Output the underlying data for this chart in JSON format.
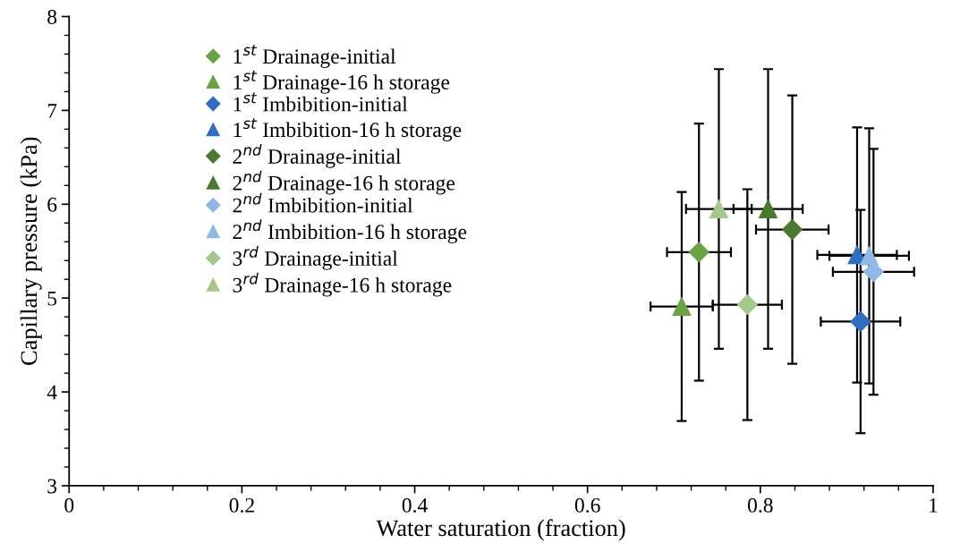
{
  "chart_data": {
    "type": "scatter",
    "xlabel": "Water saturation (fraction)",
    "ylabel": "Capillary pressure (kPa)",
    "xlim": [
      0,
      1
    ],
    "xticks": [
      0,
      0.2,
      0.4,
      0.6,
      0.8,
      1
    ],
    "ylim": [
      3,
      8
    ],
    "yticks": [
      3,
      4,
      5,
      6,
      7,
      8
    ],
    "grid": false,
    "legend": "top left",
    "series": [
      {
        "name": "1$^{st}$ Drainage-initial",
        "color": "#6aa342",
        "marker": "diamond",
        "x": [
          0.729
        ],
        "values": [
          5.49
        ],
        "xerrors": [
          0.037
        ],
        "errors": [
          1.37
        ]
      },
      {
        "name": "1$^{st}$ Drainage-16 h storage",
        "color": "#6aa342",
        "marker": "triangle",
        "x": [
          0.709
        ],
        "values": [
          4.91
        ],
        "xerrors": [
          0.036
        ],
        "errors": [
          1.22
        ]
      },
      {
        "name": "1$^{st}$ Imbibition-initial",
        "color": "#2e6fc4",
        "marker": "diamond",
        "x": [
          0.916
        ],
        "values": [
          4.75
        ],
        "xerrors": [
          0.046
        ],
        "errors": [
          1.19
        ]
      },
      {
        "name": "1$^{st}$ Imbibition-16 h storage",
        "color": "#2e6fc4",
        "marker": "triangle",
        "x": [
          0.912
        ],
        "values": [
          5.46
        ],
        "xerrors": [
          0.046
        ],
        "errors": [
          1.36
        ]
      },
      {
        "name": "2$^{nd}$ Drainage-initial",
        "color": "#4a7a2e",
        "marker": "diamond",
        "x": [
          0.837
        ],
        "values": [
          5.73
        ],
        "xerrors": [
          0.042
        ],
        "errors": [
          1.43
        ]
      },
      {
        "name": "2$^{nd}$ Drainage-16 h storage",
        "color": "#4a7a2e",
        "marker": "triangle",
        "x": [
          0.809
        ],
        "values": [
          5.95
        ],
        "xerrors": [
          0.04
        ],
        "errors": [
          1.49
        ]
      },
      {
        "name": "2$^{nd}$ Imbibition-initial",
        "color": "#8fb8e6",
        "marker": "diamond",
        "x": [
          0.931
        ],
        "values": [
          5.28
        ],
        "xerrors": [
          0.047
        ],
        "errors": [
          1.31
        ]
      },
      {
        "name": "2$^{nd}$ Imbibition-16 h storage",
        "color": "#8fb8e6",
        "marker": "triangle",
        "x": [
          0.926
        ],
        "values": [
          5.45
        ],
        "xerrors": [
          0.046
        ],
        "errors": [
          1.36
        ]
      },
      {
        "name": "3$^{rd}$ Drainage-initial",
        "color": "#a5c98d",
        "marker": "diamond",
        "x": [
          0.785
        ],
        "values": [
          4.93
        ],
        "xerrors": [
          0.04
        ],
        "errors": [
          1.23
        ]
      },
      {
        "name": "3$^{rd}$ Drainage-16 h storage",
        "color": "#a5c98d",
        "marker": "triangle",
        "x": [
          0.752
        ],
        "values": [
          5.95
        ],
        "xerrors": [
          0.038
        ],
        "errors": [
          1.49
        ]
      }
    ]
  }
}
